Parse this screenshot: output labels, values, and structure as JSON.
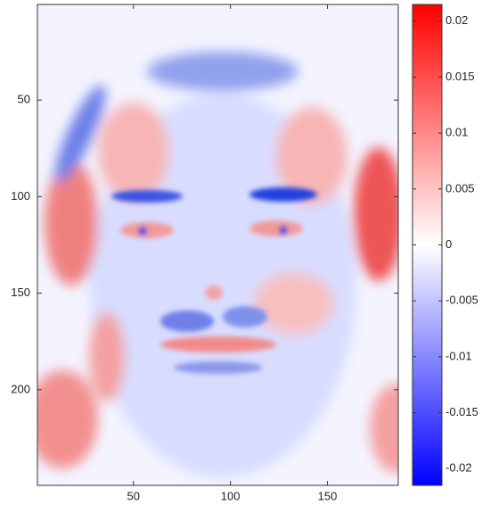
{
  "chart_data": {
    "type": "image",
    "xlim": [
      0.5,
      186.5
    ],
    "xticks": [
      50,
      100,
      150
    ],
    "ylim": [
      0.5,
      249.5
    ],
    "yticks": [
      50,
      100,
      150,
      200
    ],
    "y_reversed": true,
    "colorbar": {
      "clim": [
        -0.0215,
        0.0215
      ],
      "ticks": [
        0.02,
        0.015,
        0.01,
        0.005,
        0,
        -0.005,
        -0.01,
        -0.015,
        -0.02
      ],
      "colormap": [
        "#0000ff",
        "#ffffff",
        "#ff0000"
      ]
    }
  }
}
